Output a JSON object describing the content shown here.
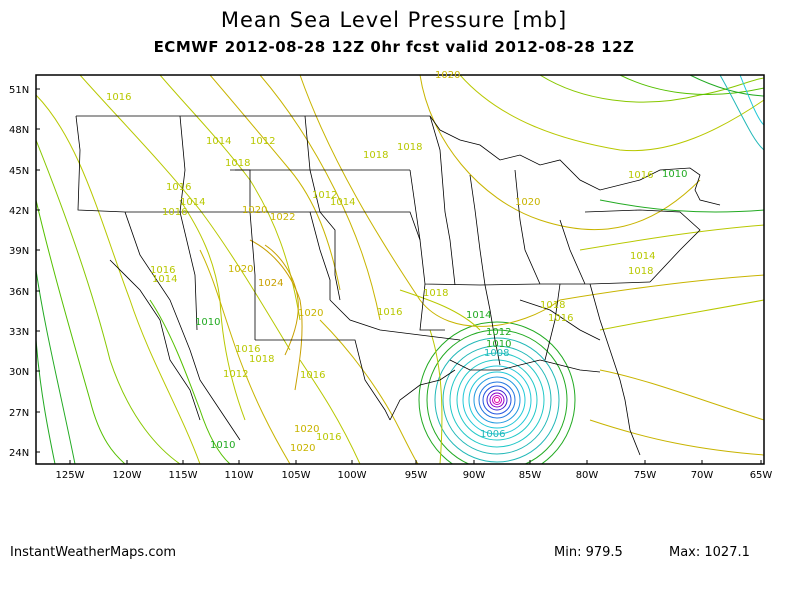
{
  "title": "Mean Sea Level Pressure [mb]",
  "subtitle": "ECMWF 2012-08-28 12Z 0hr fcst valid 2012-08-28 12Z",
  "lat_labels": [
    "51N",
    "48N",
    "45N",
    "42N",
    "39N",
    "36N",
    "33N",
    "30N",
    "27N",
    "24N"
  ],
  "lon_labels": [
    "125W",
    "120W",
    "115W",
    "110W",
    "105W",
    "100W",
    "95W",
    "90W",
    "85W",
    "80W",
    "75W",
    "70W",
    "65W"
  ],
  "footer": {
    "site": "InstantWeatherMaps.com",
    "min": "Min:  979.5",
    "max": "Max: 1027.1"
  },
  "isobar_labels": [
    {
      "text": "1016",
      "color": "#b8c800"
    },
    {
      "text": "1014",
      "color": "#b8c800"
    },
    {
      "text": "1012",
      "color": "#b8c800"
    },
    {
      "text": "1016",
      "color": "#b8c800"
    },
    {
      "text": "1018",
      "color": "#b8c800"
    },
    {
      "text": "1016",
      "color": "#b8c800"
    },
    {
      "text": "1014",
      "color": "#b8c800"
    },
    {
      "text": "1020",
      "color": "#c8b400"
    },
    {
      "text": "1022",
      "color": "#c8b400"
    },
    {
      "text": "1012",
      "color": "#b8c800"
    },
    {
      "text": "1014",
      "color": "#b8c800"
    },
    {
      "text": "1018",
      "color": "#b8c800"
    },
    {
      "text": "1020",
      "color": "#c8b400"
    },
    {
      "text": "1018",
      "color": "#b8c800"
    },
    {
      "text": "1016",
      "color": "#b8c800"
    },
    {
      "text": "1014",
      "color": "#b8c800"
    },
    {
      "text": "1020",
      "color": "#c8b400"
    },
    {
      "text": "1024",
      "color": "#c8a000"
    },
    {
      "text": "1010",
      "color": "#22aa22"
    },
    {
      "text": "1020",
      "color": "#c8b400"
    },
    {
      "text": "1016",
      "color": "#b8c800"
    },
    {
      "text": "1018",
      "color": "#b8c800"
    },
    {
      "text": "1012",
      "color": "#b8c800"
    },
    {
      "text": "1016",
      "color": "#b8c800"
    },
    {
      "text": "1010",
      "color": "#22aa22"
    },
    {
      "text": "1016",
      "color": "#b8c800"
    },
    {
      "text": "1020",
      "color": "#c8b400"
    },
    {
      "text": "1018",
      "color": "#b8c800"
    },
    {
      "text": "1016",
      "color": "#b8c800"
    },
    {
      "text": "1014",
      "color": "#b8c800"
    },
    {
      "text": "1012",
      "color": "#22aa22"
    },
    {
      "text": "1010",
      "color": "#22aa22"
    },
    {
      "text": "1008",
      "color": "#22b8b8"
    },
    {
      "text": "1006",
      "color": "#22b8b8"
    },
    {
      "text": "1018",
      "color": "#b8c800"
    },
    {
      "text": "1016",
      "color": "#b8c800"
    },
    {
      "text": "1020",
      "color": "#c8b400"
    },
    {
      "text": "1018",
      "color": "#b8c800"
    },
    {
      "text": "1014",
      "color": "#22aa22"
    },
    {
      "text": "1016",
      "color": "#b8c800"
    },
    {
      "text": "1010",
      "color": "#22aa22"
    },
    {
      "text": "1020",
      "color": "#c8b400"
    }
  ]
}
